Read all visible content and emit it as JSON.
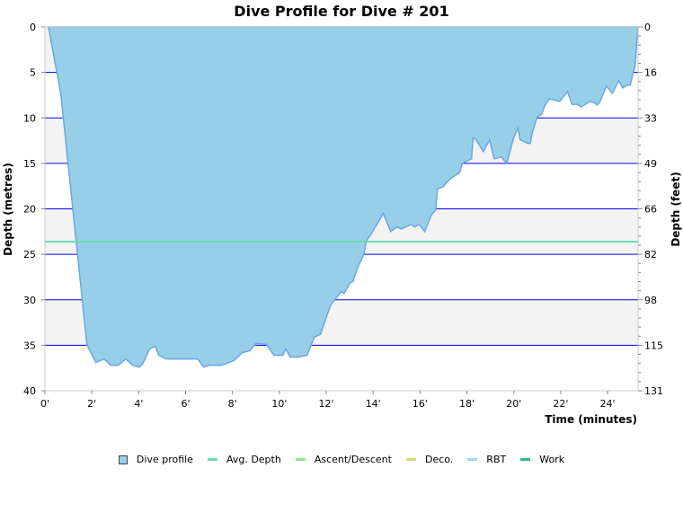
{
  "chart_data": {
    "type": "area",
    "title": "Dive Profile for Dive # 201",
    "xlabel": "Time (minutes)",
    "ylabel": "Depth (metres)",
    "y2label": "Depth (feet)",
    "xlim": [
      0,
      25.3
    ],
    "ylim": [
      40,
      0
    ],
    "y_inverted": true,
    "grid": true,
    "legend_position": "bottom",
    "x_ticks": [
      "0'",
      "2'",
      "4'",
      "6'",
      "8'",
      "10'",
      "12'",
      "14'",
      "16'",
      "18'",
      "20'",
      "22'",
      "24'"
    ],
    "y_ticks": [
      "0",
      "5",
      "10",
      "15",
      "20",
      "25",
      "30",
      "35",
      "40"
    ],
    "y2_ticks": [
      "0",
      "16",
      "33",
      "49",
      "66",
      "82",
      "98",
      "115",
      "131"
    ],
    "avg_depth": 23.6,
    "series": [
      {
        "name": "Dive profile",
        "time": [
          0.15,
          0.68,
          1.79,
          2.17,
          2.53,
          2.8,
          3.13,
          3.45,
          3.75,
          4.02,
          4.18,
          4.47,
          4.71,
          4.85,
          5.17,
          6.51,
          6.77,
          7.01,
          7.54,
          8.05,
          8.43,
          8.74,
          9.0,
          9.45,
          9.77,
          10.15,
          10.27,
          10.46,
          10.79,
          11.18,
          11.49,
          11.75,
          12.18,
          12.64,
          12.76,
          13.03,
          13.14,
          13.3,
          13.6,
          13.72,
          13.98,
          14.43,
          14.75,
          15.0,
          15.2,
          15.63,
          15.77,
          15.96,
          16.2,
          16.48,
          16.67,
          16.74,
          16.97,
          17.24,
          17.69,
          17.8,
          18.2,
          18.26,
          18.39,
          18.7,
          18.97,
          19.16,
          19.46,
          19.7,
          19.99,
          20.18,
          20.27,
          20.6,
          20.7,
          20.8,
          21.0,
          21.19,
          21.33,
          21.52,
          21.96,
          22.29,
          22.48,
          22.72,
          22.86,
          23.25,
          23.43,
          23.56,
          23.68,
          23.95,
          24.2,
          24.48,
          24.64,
          24.83,
          24.97,
          25.1,
          25.17,
          25.29
        ],
        "depth": [
          0,
          7.4,
          34.9,
          36.9,
          36.5,
          37.2,
          37.2,
          36.5,
          37.2,
          37.4,
          37.0,
          35.4,
          35.1,
          36.1,
          36.5,
          36.5,
          37.4,
          37.2,
          37.2,
          36.7,
          35.8,
          35.6,
          34.8,
          34.9,
          36.1,
          36.1,
          35.4,
          36.3,
          36.3,
          36.1,
          34.1,
          33.8,
          30.6,
          29.1,
          29.3,
          28.1,
          28.0,
          26.7,
          25.0,
          23.5,
          22.5,
          20.5,
          22.5,
          22.0,
          22.2,
          21.7,
          22.0,
          21.7,
          22.5,
          20.7,
          20.1,
          17.8,
          17.6,
          16.8,
          16.0,
          15.0,
          14.5,
          12.2,
          12.4,
          13.7,
          12.4,
          14.5,
          14.3,
          15.0,
          12.2,
          11.1,
          12.4,
          12.8,
          12.8,
          11.5,
          9.9,
          9.6,
          8.6,
          7.9,
          8.2,
          7.1,
          8.5,
          8.5,
          8.8,
          8.2,
          8.3,
          8.6,
          8.2,
          6.5,
          7.3,
          5.9,
          6.7,
          6.4,
          6.4,
          4.9,
          4.3,
          0
        ]
      }
    ],
    "legend": [
      {
        "label": "Dive profile",
        "color": "#97cfe8",
        "kind": "box"
      },
      {
        "label": "Avg. Depth",
        "color": "#6ddbb3",
        "kind": "line"
      },
      {
        "label": "Ascent/Descent",
        "color": "#90e890",
        "kind": "line"
      },
      {
        "label": "Deco.",
        "color": "#d6e070",
        "kind": "line"
      },
      {
        "label": "RBT",
        "color": "#a0d8f0",
        "kind": "line"
      },
      {
        "label": "Work",
        "color": "#2cb88a",
        "kind": "line"
      }
    ],
    "colors": {
      "fill": "#97cfe8",
      "outline": "#6aa6e6",
      "grid": "#0000ee",
      "band": "#f3f3f3",
      "avg": "#6ddbb3"
    }
  }
}
